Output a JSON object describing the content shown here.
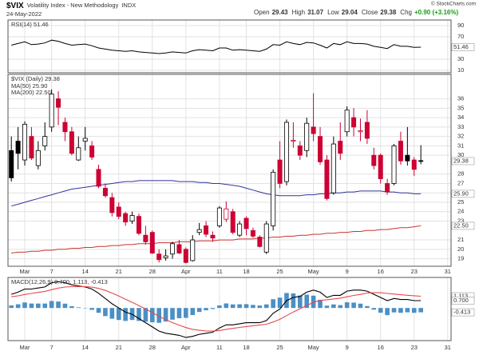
{
  "header": {
    "symbol": "$VIX",
    "name": "Volatility Index - New Methodology",
    "exchange": "INDX",
    "date": "24-May-2022",
    "copyright": "© StockCharts.com",
    "quote": [
      {
        "label": "Open",
        "value": 29.43
      },
      {
        "label": "High",
        "value": 31.07
      },
      {
        "label": "Low",
        "value": 29.04
      },
      {
        "label": "Close",
        "value": 29.38
      },
      {
        "label": "Chg",
        "value": "+0.90 (+3.16%)",
        "color": "#1a9a1a"
      }
    ]
  },
  "chart_data": [
    {
      "type": "line",
      "title": "RSI(14) 51.46",
      "ylim": [
        5.7,
        100
      ],
      "yticks": [
        90,
        70,
        30,
        10
      ],
      "grid": true,
      "tags": [
        {
          "value": 51.46,
          "color": "#000"
        }
      ],
      "series": [
        {
          "color": "#000",
          "values": [
            55,
            58,
            61,
            56,
            57,
            59,
            64,
            62,
            58,
            55,
            56,
            57,
            54,
            50,
            48,
            46,
            45,
            44,
            45,
            43,
            42,
            41,
            40,
            41,
            43,
            42,
            41,
            45,
            47,
            46,
            45,
            50,
            50,
            46,
            47,
            46,
            45,
            44,
            48,
            56,
            55,
            61,
            58,
            56,
            60,
            59,
            55,
            50,
            58,
            56,
            61,
            58,
            58,
            57,
            53,
            51,
            49,
            56,
            53,
            53,
            51,
            51.46,
            null,
            null,
            null,
            null
          ]
        }
      ]
    },
    {
      "type": "candlestick",
      "title": "$VIX (Daily) 29.38",
      "ylim": [
        18.2,
        38.6
      ],
      "yticks": [
        19,
        20,
        21,
        23,
        24,
        25,
        26,
        27,
        28,
        30,
        31,
        32,
        33,
        34,
        35,
        36
      ],
      "grid": true,
      "up_color": "#000",
      "down_color": "#cc0033",
      "categories": [
        null,
        null,
        "Mar",
        null,
        null,
        null,
        "7",
        null,
        null,
        null,
        null,
        "14",
        null,
        null,
        null,
        null,
        "21",
        null,
        null,
        null,
        null,
        "28",
        null,
        null,
        null,
        null,
        "Apr",
        null,
        null,
        null,
        null,
        "11",
        null,
        null,
        null,
        "18",
        null,
        null,
        null,
        null,
        "25",
        null,
        null,
        null,
        null,
        "May",
        null,
        null,
        null,
        null,
        "9",
        null,
        null,
        null,
        null,
        "16",
        null,
        null,
        null,
        null,
        "23",
        null,
        null,
        null,
        null,
        "31"
      ],
      "open": [
        30.5,
        31.5,
        29.5,
        32.0,
        28.9,
        31.0,
        33.0,
        36.0,
        33.5,
        32.5,
        29.5,
        31.5,
        31.0,
        28.5,
        26.5,
        25.5,
        24.5,
        23.8,
        23.0,
        23.5,
        21.5,
        21.8,
        19.5,
        19.1,
        19.5,
        20.5,
        20.0,
        18.8,
        21.8,
        22.5,
        21.5,
        22.5,
        23.2,
        24.0,
        21.5,
        23.3,
        22.0,
        21.3,
        19.7,
        22.5,
        29.5,
        27.2,
        31.5,
        31.0,
        30.5,
        33.0,
        32.0,
        29.5,
        26.0,
        31.5,
        32.5,
        34.0,
        32.5,
        33.5,
        30.0,
        30.0,
        27.0,
        27.0,
        31.5,
        30.0,
        29.5,
        29.43,
        null,
        null,
        null,
        null
      ],
      "high": [
        32.0,
        33.0,
        33.6,
        33.0,
        31.5,
        33.5,
        37.0,
        36.8,
        34.0,
        33.0,
        32.0,
        33.0,
        31.5,
        29.0,
        27.0,
        26.0,
        25.0,
        24.0,
        24.0,
        23.8,
        22.5,
        22.0,
        20.0,
        20.0,
        20.8,
        21.0,
        20.2,
        21.5,
        22.8,
        23.0,
        21.9,
        24.6,
        25.1,
        24.3,
        23.0,
        23.5,
        22.3,
        21.5,
        23.0,
        28.5,
        31.5,
        33.8,
        33.5,
        31.5,
        34.0,
        36.6,
        33.0,
        30.0,
        32.0,
        33.5,
        35.2,
        35.0,
        33.9,
        34.8,
        30.8,
        30.2,
        27.5,
        31.2,
        32.5,
        33.0,
        29.8,
        31.07,
        null,
        null,
        null,
        null
      ],
      "low": [
        27.2,
        28.5,
        28.9,
        29.5,
        28.5,
        30.5,
        32.5,
        33.2,
        31.5,
        30.0,
        29.4,
        30.5,
        29.5,
        26.5,
        25.5,
        23.5,
        23.2,
        22.5,
        22.7,
        21.5,
        20.5,
        19.5,
        18.6,
        18.8,
        19.0,
        19.5,
        18.5,
        18.7,
        21.5,
        21.3,
        20.8,
        22.3,
        22.9,
        21.6,
        21.3,
        21.5,
        21.2,
        20.2,
        19.5,
        22.0,
        26.5,
        26.8,
        30.8,
        29.5,
        29.8,
        31.5,
        29.0,
        25.2,
        25.8,
        29.5,
        32.0,
        32.0,
        31.5,
        31.2,
        28.5,
        27.0,
        25.8,
        26.8,
        29.0,
        28.9,
        27.8,
        29.04,
        null,
        null,
        null,
        null
      ],
      "close": [
        27.6,
        30.2,
        33.3,
        29.7,
        30.5,
        32.0,
        36.5,
        35.1,
        32.5,
        30.2,
        30.8,
        31.8,
        29.8,
        26.7,
        25.7,
        23.9,
        23.5,
        22.9,
        23.6,
        21.7,
        20.8,
        19.6,
        18.9,
        19.3,
        20.6,
        19.6,
        18.6,
        21.0,
        22.1,
        21.6,
        21.2,
        24.4,
        24.3,
        21.8,
        22.7,
        22.2,
        21.4,
        20.3,
        22.7,
        28.2,
        27.0,
        33.5,
        31.6,
        30.0,
        33.4,
        32.3,
        29.3,
        25.4,
        31.2,
        30.2,
        34.8,
        33.0,
        32.6,
        31.8,
        28.9,
        27.5,
        26.1,
        31.0,
        29.4,
        29.4,
        28.5,
        29.38,
        null,
        null,
        null,
        null
      ],
      "series": [
        {
          "name": "MA(50) 25.90",
          "color": "#333399",
          "values": [
            24.6,
            24.8,
            25.0,
            25.2,
            25.4,
            25.6,
            25.8,
            26.0,
            26.2,
            26.4,
            26.5,
            26.6,
            26.7,
            26.8,
            26.9,
            27.0,
            27.1,
            27.2,
            27.2,
            27.3,
            27.3,
            27.3,
            27.3,
            27.3,
            27.3,
            27.2,
            27.2,
            27.2,
            27.1,
            27.1,
            27.0,
            27.0,
            26.9,
            26.8,
            26.7,
            26.5,
            26.3,
            26.1,
            25.9,
            25.8,
            25.7,
            25.7,
            25.7,
            25.7,
            25.8,
            25.8,
            25.9,
            25.9,
            26.0,
            26.0,
            26.1,
            26.1,
            26.2,
            26.2,
            26.2,
            26.2,
            26.1,
            26.1,
            26.0,
            26.0,
            25.9,
            25.9,
            null,
            null,
            null,
            null
          ]
        },
        {
          "name": "MA(200) 22.50",
          "color": "#cc3333",
          "values": [
            19.6,
            19.7,
            19.7,
            19.8,
            19.8,
            19.9,
            19.9,
            20.0,
            20.0,
            20.1,
            20.1,
            20.2,
            20.2,
            20.3,
            20.3,
            20.4,
            20.4,
            20.5,
            20.5,
            20.6,
            20.6,
            20.6,
            20.7,
            20.7,
            20.7,
            20.8,
            20.8,
            20.8,
            20.9,
            20.9,
            20.9,
            21.0,
            21.0,
            21.0,
            21.1,
            21.1,
            21.1,
            21.2,
            21.2,
            21.3,
            21.3,
            21.4,
            21.4,
            21.5,
            21.5,
            21.6,
            21.6,
            21.7,
            21.7,
            21.8,
            21.8,
            21.9,
            21.9,
            22.0,
            22.0,
            22.1,
            22.1,
            22.2,
            22.3,
            22.3,
            22.4,
            22.5,
            null,
            null,
            null,
            null
          ]
        }
      ],
      "tags": [
        {
          "value": 29.38,
          "color": "#000"
        },
        {
          "value": 25.9,
          "label": "25.90",
          "color": "#333399"
        },
        {
          "value": 22.5,
          "label": "22.50",
          "color": "#cc3333"
        }
      ]
    },
    {
      "type": "macd",
      "title": "MACD(12,26,9) 0.700, 1.113, -0.413",
      "ylim": [
        -3.1,
        2.9
      ],
      "categories": [
        null,
        null,
        "Mar",
        null,
        null,
        null,
        "7",
        null,
        null,
        null,
        null,
        "14",
        null,
        null,
        null,
        null,
        "21",
        null,
        null,
        null,
        null,
        "28",
        null,
        null,
        null,
        null,
        "Apr",
        null,
        null,
        null,
        null,
        "11",
        null,
        null,
        null,
        "18",
        null,
        null,
        null,
        null,
        "25",
        null,
        null,
        null,
        null,
        "May",
        null,
        null,
        null,
        null,
        "9",
        null,
        null,
        null,
        null,
        "16",
        null,
        null,
        null,
        null,
        "23",
        null,
        null,
        null,
        null,
        "31"
      ],
      "series": [
        {
          "color": "#000",
          "values": [
            1.3,
            1.5,
            1.8,
            1.8,
            1.9,
            2.0,
            2.4,
            2.5,
            2.4,
            2.2,
            2.1,
            2.0,
            1.8,
            1.4,
            0.9,
            0.4,
            0.0,
            -0.4,
            -0.6,
            -1.0,
            -1.4,
            -1.8,
            -2.2,
            -2.4,
            -2.5,
            -2.6,
            -2.8,
            -2.7,
            -2.5,
            -2.4,
            -2.3,
            -1.9,
            -1.6,
            -1.6,
            -1.5,
            -1.4,
            -1.4,
            -1.4,
            -1.2,
            -0.5,
            -0.1,
            0.7,
            1.0,
            1.1,
            1.5,
            1.7,
            1.5,
            1.0,
            1.2,
            1.2,
            1.6,
            1.7,
            1.7,
            1.6,
            1.3,
            1.0,
            0.7,
            0.9,
            0.8,
            0.8,
            0.7,
            0.7,
            null,
            null,
            null,
            null
          ]
        },
        {
          "color": "#e8484d",
          "values": [
            1.06,
            1.15,
            1.28,
            1.38,
            1.48,
            1.58,
            1.74,
            1.89,
            1.99,
            2.03,
            2.04,
            2.03,
            1.98,
            1.86,
            1.67,
            1.42,
            1.14,
            0.83,
            0.54,
            0.23,
            -0.1,
            -0.44,
            -0.79,
            -1.11,
            -1.39,
            -1.63,
            -1.86,
            -2.03,
            -2.12,
            -2.18,
            -2.2,
            -2.14,
            -2.03,
            -1.94,
            -1.85,
            -1.76,
            -1.69,
            -1.63,
            -1.54,
            -1.33,
            -1.08,
            -0.72,
            -0.38,
            -0.08,
            0.24,
            0.53,
            0.72,
            0.78,
            0.86,
            0.93,
            1.06,
            1.19,
            1.29,
            1.42,
            1.46,
            1.45,
            1.38,
            1.32,
            1.26,
            1.21,
            1.16,
            1.113,
            null,
            null,
            null,
            null
          ]
        },
        {
          "type": "histogram",
          "color": "#4b8fc4",
          "values": [
            0.24,
            0.35,
            0.52,
            0.42,
            0.42,
            0.42,
            0.66,
            0.61,
            0.41,
            0.17,
            0.06,
            -0.03,
            -0.18,
            -0.46,
            -0.77,
            -1.02,
            -1.14,
            -1.23,
            -1.14,
            -1.23,
            -1.3,
            -1.36,
            -1.41,
            -1.29,
            -1.11,
            -0.97,
            -0.94,
            -0.67,
            -0.38,
            -0.22,
            -0.1,
            0.24,
            0.43,
            0.34,
            0.35,
            0.36,
            0.29,
            0.23,
            0.34,
            0.83,
            0.98,
            1.42,
            1.38,
            1.18,
            1.26,
            1.17,
            0.78,
            0.22,
            0.34,
            0.27,
            0.54,
            0.51,
            0.41,
            0.18,
            -0.16,
            -0.45,
            -0.68,
            -0.42,
            -0.46,
            -0.41,
            -0.46,
            -0.413,
            null,
            null,
            null,
            null
          ]
        }
      ],
      "tags": [
        {
          "value": 1.113,
          "color": "#e8484d"
        },
        {
          "value": 0.7,
          "label": "0.700",
          "color": "#000"
        },
        {
          "value": -0.413,
          "color": "#4b8fc4"
        }
      ]
    }
  ]
}
